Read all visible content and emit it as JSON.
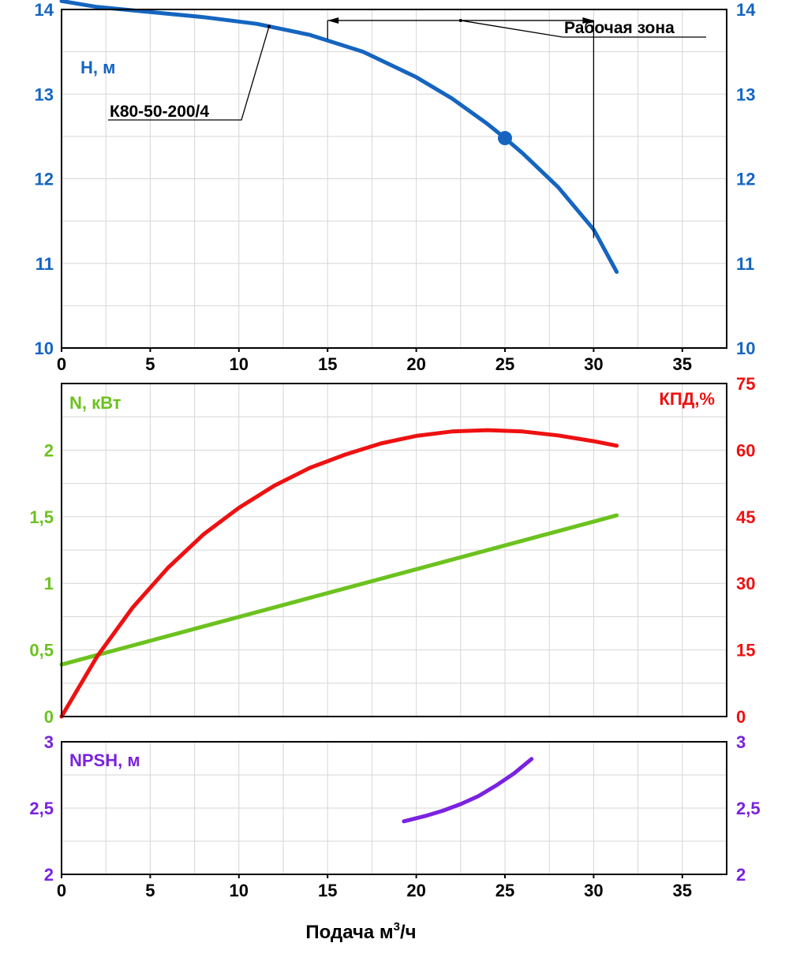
{
  "colors": {
    "head": "#1565c0",
    "power": "#6cc21e",
    "efficiency": "#ee1111",
    "npsh": "#7a22e0",
    "grid": "#d6d6d6",
    "axis": "#000000"
  },
  "chart_data": [
    {
      "id": "head",
      "type": "line",
      "ylabel": "H, м",
      "xlim": [
        0,
        37.5
      ],
      "ylim": [
        10,
        14
      ],
      "x_ticks": [
        0,
        5,
        10,
        15,
        20,
        25,
        30,
        35
      ],
      "y_ticks_left": [
        10,
        11,
        12,
        13,
        14
      ],
      "y_ticks_right": [
        10,
        11,
        12,
        13,
        14
      ],
      "grid": true,
      "series": [
        {
          "name": "К80-50-200/4",
          "x": [
            0,
            2,
            5,
            8,
            11,
            14,
            17,
            20,
            22,
            24,
            25,
            26,
            28,
            30,
            31.3
          ],
          "y": [
            14.1,
            14.03,
            13.97,
            13.91,
            13.83,
            13.7,
            13.5,
            13.2,
            12.95,
            12.65,
            12.48,
            12.3,
            11.9,
            11.4,
            10.9
          ]
        }
      ],
      "operating_point": {
        "x": 25,
        "y": 12.48
      },
      "operating_zone": {
        "label": "Рабочая зона",
        "x_start": 15,
        "x_end": 30
      }
    },
    {
      "id": "power_efficiency",
      "type": "line",
      "xlim": [
        0,
        37.5
      ],
      "ylabel_left": "N, кВт",
      "ylabel_right": "КПД,%",
      "ylim_left": [
        0,
        2.5
      ],
      "ylim_right": [
        0,
        75
      ],
      "y_ticks_left": [
        {
          "value": 0,
          "label": "0"
        },
        {
          "value": 0.5,
          "label": "0,5"
        },
        {
          "value": 1,
          "label": "1"
        },
        {
          "value": 1.5,
          "label": "1,5"
        },
        {
          "value": 2,
          "label": "2"
        }
      ],
      "y_ticks_right": [
        0,
        15,
        30,
        45,
        60,
        75
      ],
      "grid": true,
      "series": [
        {
          "axis": "left",
          "x": [
            0,
            31.3
          ],
          "y": [
            0.39,
            1.51
          ]
        },
        {
          "axis": "right",
          "x": [
            0,
            2,
            4,
            6,
            8,
            10,
            12,
            14,
            16,
            18,
            20,
            22,
            24,
            26,
            28,
            30,
            31.3
          ],
          "y": [
            0,
            13.5,
            24.5,
            33.5,
            41,
            47,
            52,
            56,
            59,
            61.5,
            63.2,
            64.2,
            64.5,
            64.2,
            63.3,
            62,
            61
          ]
        }
      ]
    },
    {
      "id": "npsh",
      "type": "line",
      "ylabel": "NPSH, м",
      "xlabel": "Подача м",
      "xlabel_sup": "3",
      "xlabel_tail": "/ч",
      "xlim": [
        0,
        37.5
      ],
      "ylim": [
        2,
        3
      ],
      "x_ticks": [
        0,
        5,
        10,
        15,
        20,
        25,
        30,
        35
      ],
      "y_ticks_left": [
        {
          "value": 2,
          "label": "2"
        },
        {
          "value": 2.5,
          "label": "2,5"
        },
        {
          "value": 3,
          "label": "3"
        }
      ],
      "y_ticks_right": [
        {
          "value": 2,
          "label": "2"
        },
        {
          "value": 2.5,
          "label": "2,5"
        },
        {
          "value": 3,
          "label": "3"
        }
      ],
      "grid": true,
      "series": [
        {
          "x": [
            19.3,
            20.5,
            21.5,
            22.5,
            23.5,
            24.5,
            25.5,
            26.5
          ],
          "y": [
            2.4,
            2.44,
            2.48,
            2.53,
            2.59,
            2.67,
            2.76,
            2.87
          ]
        }
      ]
    }
  ]
}
